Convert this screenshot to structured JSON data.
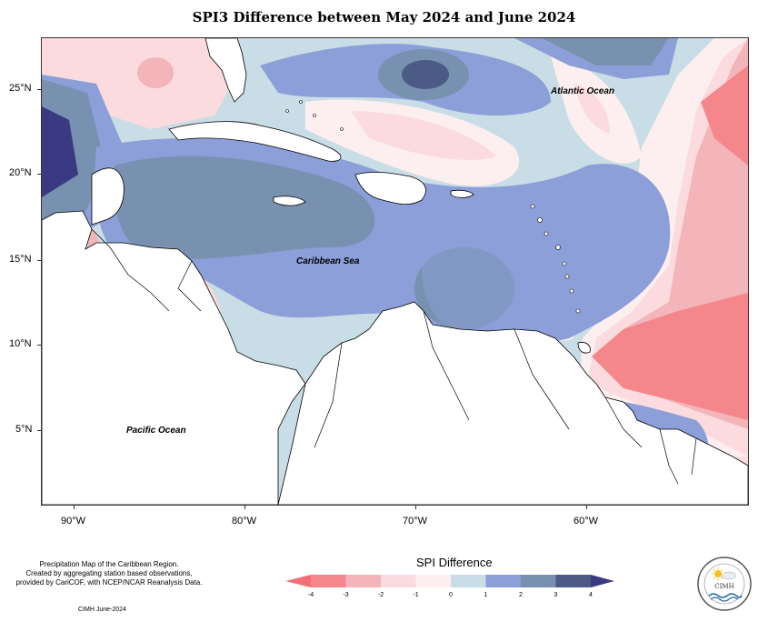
{
  "title": "SPI3 Difference between May 2024 and June 2024",
  "ocean_labels": {
    "atlantic": "Atlantic Ocean",
    "caribbean": "Caribbean Sea",
    "pacific": "Pacific Ocean"
  },
  "lat_labels": [
    "25°N",
    "20°N",
    "15°N",
    "10°N",
    "5°N"
  ],
  "lon_labels": [
    "90°W",
    "80°W",
    "70°W",
    "60°W"
  ],
  "footer": {
    "line1": "Precipitation Map of the Caribbean Region.",
    "line2": "Created by aggregating station based observations,",
    "line3": "provided by CariCOF, with NCEP/NCAR Reanalysis Data.",
    "credit": "CIMH June-2024"
  },
  "legend": {
    "title": "SPI Difference",
    "tick_labels": [
      "-4",
      "-3",
      "-2",
      "-1",
      "0",
      "1",
      "2",
      "3",
      "4"
    ],
    "colors": [
      "#f4868c",
      "#f3b5b9",
      "#fbdbde",
      "#fdeff0",
      "#c9dde6",
      "#8c9fd8",
      "#7891b0",
      "#4c5b85"
    ],
    "min_color": "#f26f78",
    "max_color": "#3a3a82"
  },
  "logo": {
    "text": "CIMH"
  }
}
